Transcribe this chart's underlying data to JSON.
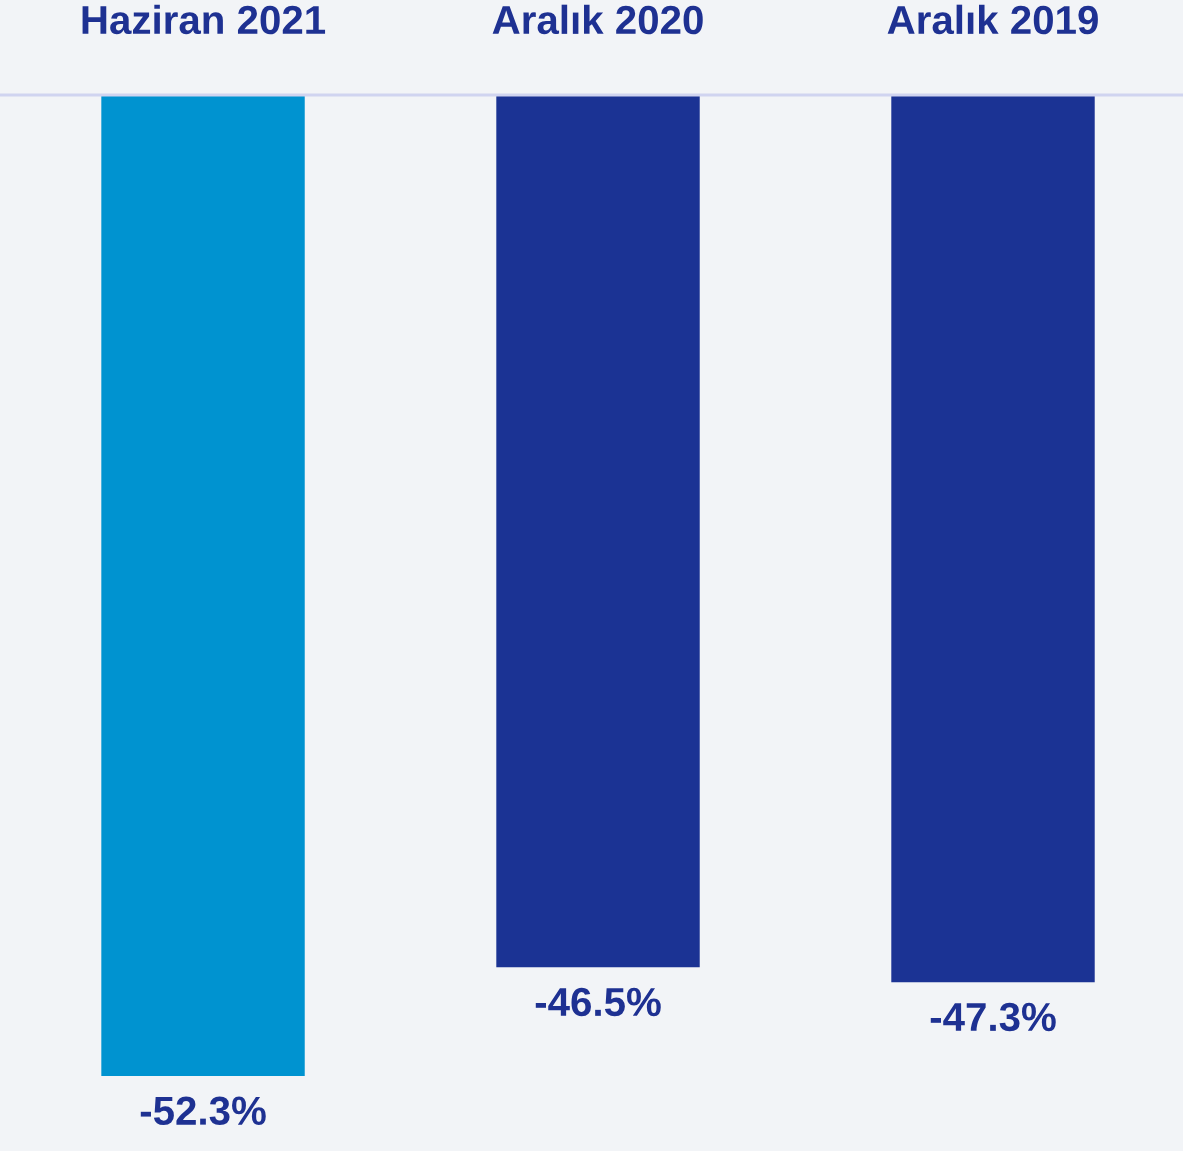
{
  "chart_data": {
    "type": "bar",
    "categories": [
      "Haziran 2021",
      "Aralık 2020",
      "Aralık 2019"
    ],
    "values": [
      -52.3,
      -46.5,
      -47.3
    ],
    "colors": [
      "#0093d0",
      "#1b3394",
      "#1b3394"
    ],
    "value_labels": [
      "-52.3%",
      "-46.5%",
      "-47.3%"
    ],
    "tick_labels": "x",
    "grid": false,
    "legend": false
  }
}
